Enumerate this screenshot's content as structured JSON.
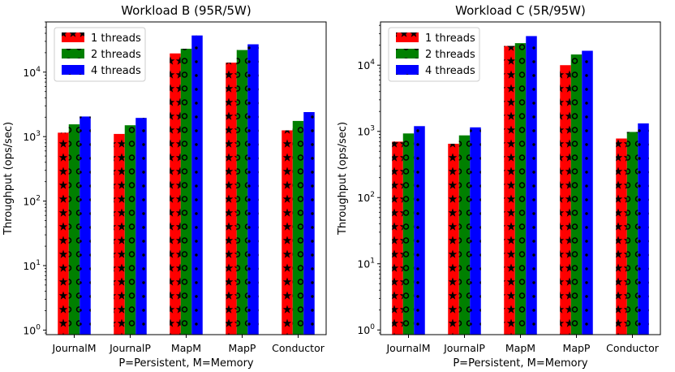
{
  "chart_data": [
    {
      "type": "bar",
      "title": "Workload B (95R/5W)",
      "xlabel": "P=Persistent, M=Memory",
      "ylabel": "Throughput (ops/sec)",
      "yscale": "log",
      "ylim": [
        0.85,
        60000
      ],
      "yticks": [
        {
          "v": 1,
          "base": "10",
          "exp": "0"
        },
        {
          "v": 10,
          "base": "10",
          "exp": "1"
        },
        {
          "v": 100,
          "base": "10",
          "exp": "2"
        },
        {
          "v": 1000,
          "base": "10",
          "exp": "3"
        },
        {
          "v": 10000,
          "base": "10",
          "exp": "4"
        }
      ],
      "categories": [
        "JournalM",
        "JournalP",
        "MapM",
        "MapP",
        "Conductor"
      ],
      "series": [
        {
          "name": "1 threads",
          "color": "#ff0000",
          "hatch": "stars",
          "values": [
            1150,
            1100,
            19500,
            14000,
            1250
          ]
        },
        {
          "name": "2 threads",
          "color": "#008000",
          "hatch": "circles",
          "values": [
            1550,
            1500,
            23000,
            22000,
            1750
          ]
        },
        {
          "name": "4 threads",
          "color": "#0000ff",
          "hatch": "dots",
          "values": [
            2050,
            1950,
            37000,
            27000,
            2400
          ]
        }
      ],
      "legend": "top-left",
      "grid": false
    },
    {
      "type": "bar",
      "title": "Workload C (5R/95W)",
      "xlabel": "P=Persistent, M=Memory",
      "ylabel": "Throughput (ops/sec)",
      "yscale": "log",
      "ylim": [
        0.85,
        45000
      ],
      "yticks": [
        {
          "v": 1,
          "base": "10",
          "exp": "0"
        },
        {
          "v": 10,
          "base": "10",
          "exp": "1"
        },
        {
          "v": 100,
          "base": "10",
          "exp": "2"
        },
        {
          "v": 1000,
          "base": "10",
          "exp": "3"
        },
        {
          "v": 10000,
          "base": "10",
          "exp": "4"
        }
      ],
      "categories": [
        "JournalM",
        "JournalP",
        "MapM",
        "MapP",
        "Conductor"
      ],
      "series": [
        {
          "name": "1 threads",
          "color": "#ff0000",
          "hatch": "stars",
          "values": [
            700,
            650,
            19500,
            10000,
            780
          ]
        },
        {
          "name": "2 threads",
          "color": "#008000",
          "hatch": "circles",
          "values": [
            930,
            870,
            21500,
            14500,
            980
          ]
        },
        {
          "name": "4 threads",
          "color": "#0000ff",
          "hatch": "dots",
          "values": [
            1200,
            1150,
            27500,
            16500,
            1320
          ]
        }
      ],
      "legend": "top-left",
      "grid": false
    }
  ]
}
